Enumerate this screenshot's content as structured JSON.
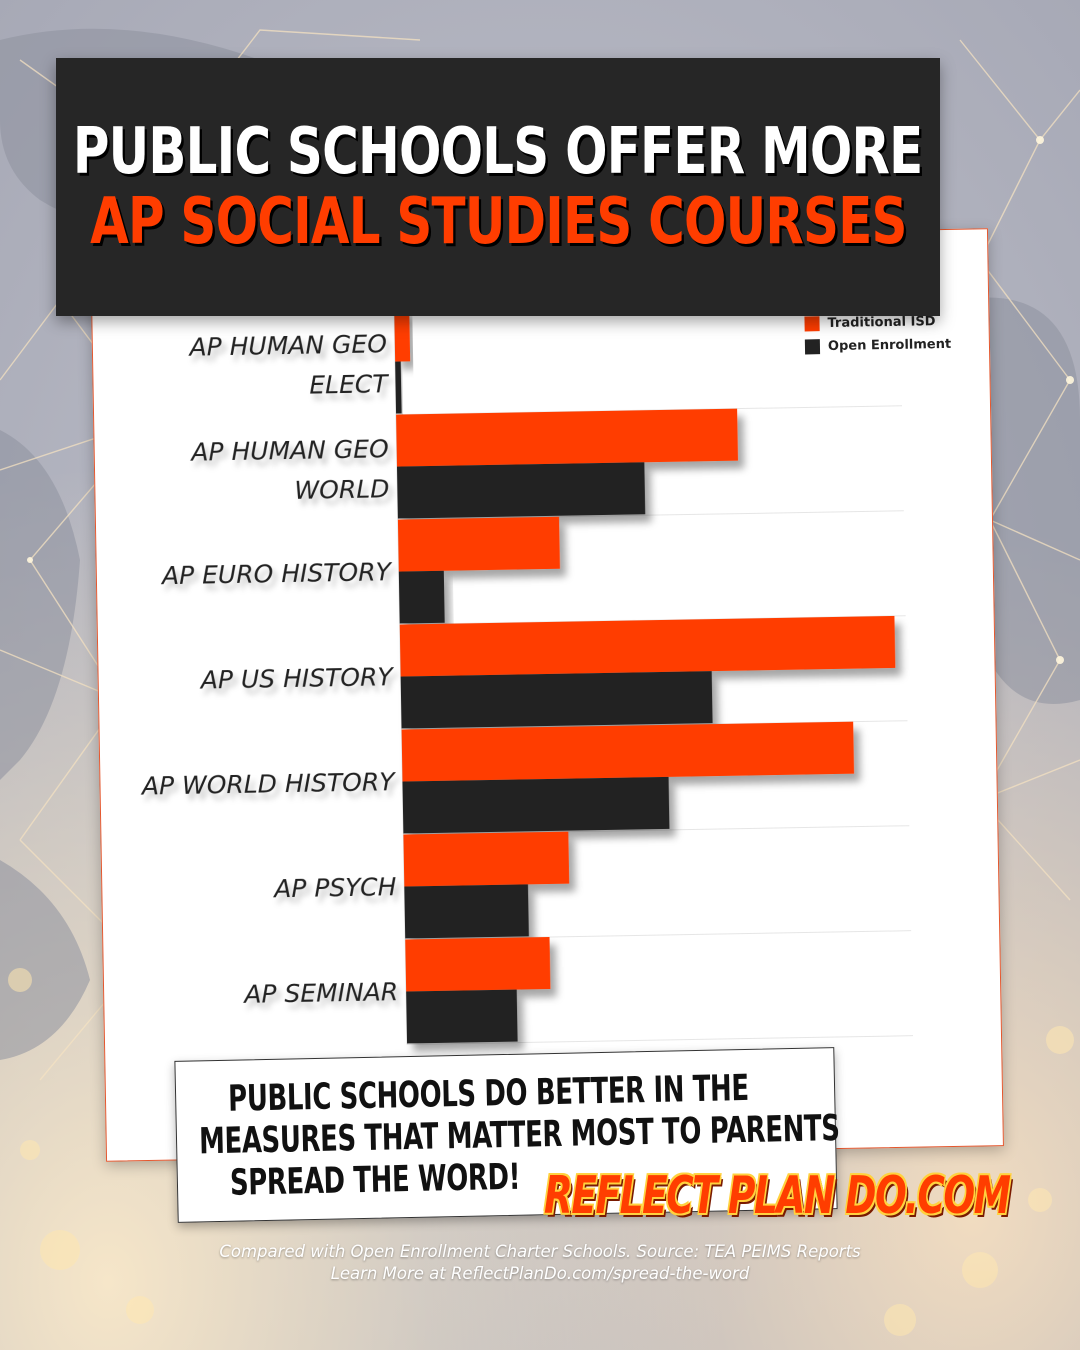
{
  "header": {
    "line1": "PUBLIC SCHOOLS OFFER MORE",
    "line2": "AP SOCIAL STUDIES COURSES"
  },
  "legend": {
    "traditional": "Traditional ISD",
    "open": "Open Enrollment"
  },
  "colors": {
    "traditional": "#ff3d00",
    "open": "#222222"
  },
  "chart_data": {
    "type": "bar",
    "orientation": "horizontal",
    "categories": [
      [
        "AP HUMAN GEO",
        "ELECT"
      ],
      [
        "AP HUMAN GEO",
        "WORLD"
      ],
      [
        "AP EURO HISTORY"
      ],
      [
        "AP US HISTORY"
      ],
      [
        "AP WORLD HISTORY"
      ],
      [
        "AP PSYCH"
      ],
      [
        "AP SEMINAR"
      ]
    ],
    "series": [
      {
        "name": "Traditional ISD",
        "values": [
          0.8,
          18.2,
          8.6,
          26.4,
          24.1,
          8.8,
          7.7
        ]
      },
      {
        "name": "Open Enrollment",
        "values": [
          0.3,
          13.2,
          2.4,
          16.6,
          14.2,
          6.6,
          5.9
        ]
      }
    ],
    "xticks": [
      "0%",
      "10%",
      "20%"
    ],
    "xlim": [
      0,
      27
    ],
    "grid": true,
    "legend_position": "top-right"
  },
  "bottom": {
    "line1": "PUBLIC SCHOOLS DO BETTER IN THE",
    "line2": "MEASURES THAT MATTER MOST TO PARENTS",
    "line3": "SPREAD THE WORD!"
  },
  "brand": "REFLECT PLAN DO.COM",
  "footer": {
    "line1": "Compared with Open Enrollment Charter Schools. Source: TEA PEIMS Reports",
    "line2": "Learn More at ReflectPlanDo.com/spread-the-word"
  }
}
